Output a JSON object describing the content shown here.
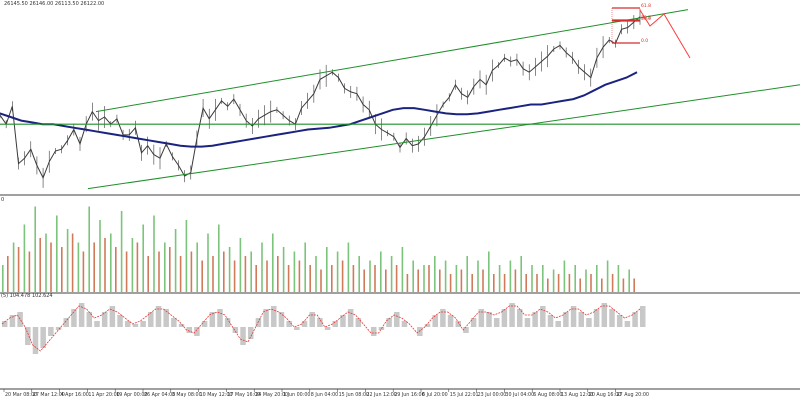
{
  "header": {
    "ohlc_text": "26145.50 26146.00 26113.50 26122.00",
    "volume_label": "0",
    "oscillator_label": "(5) 104.478 102.624"
  },
  "colors": {
    "background": "#ffffff",
    "price_line": "#3a3a3a",
    "moving_average": "#1a237e",
    "channel_lines": "#1f8f2a",
    "volume_up": "#7cc47c",
    "volume_down": "#d07a5a",
    "oscillator_fill": "#c8c8c8",
    "oscillator_signal": "#e53935",
    "fib_levels": "#d32f2f",
    "projection_line": "#ff3b3b",
    "axis_text": "#333333",
    "separator": "#000000"
  },
  "chart_data": {
    "type": "line",
    "x_ticks": [
      "20 Mar 08:00",
      "27 Mar 12:00",
      "4 Apr 16:00",
      "11 Apr 20:00",
      "19 Apr 00:00",
      "26 Apr 04:00",
      "3 May 08:00",
      "10 May 12:00",
      "17 May 16:00",
      "24 May 20:00",
      "1 Jun 00:00",
      "8 Jun 04:00",
      "15 Jun 08:00",
      "22 Jun 12:00",
      "29 Jun 16:00",
      "6 Jul 20:00",
      "15 Jul 22:01",
      "23 Jul 00:00",
      "30 Jul 04:00",
      "6 Aug 08:00",
      "13 Aug 12:00",
      "20 Aug 16:00",
      "27 Aug 20:00"
    ],
    "price_series": [
      4.4,
      3.9,
      4.9,
      1.7,
      2.0,
      2.5,
      1.6,
      0.9,
      1.8,
      2.4,
      2.5,
      3.0,
      3.6,
      2.8,
      3.9,
      4.6,
      4.1,
      4.3,
      3.9,
      4.2,
      3.3,
      3.3,
      3.7,
      2.3,
      2.7,
      2.2,
      2.0,
      2.8,
      2.1,
      1.6,
      1.0,
      1.2,
      3.1,
      4.8,
      4.2,
      4.7,
      5.2,
      4.9,
      5.3,
      4.7,
      4.1,
      3.8,
      4.2,
      4.4,
      4.6,
      4.7,
      4.4,
      4.1,
      3.9,
      4.8,
      5.2,
      5.6,
      6.4,
      6.6,
      6.8,
      6.5,
      5.9,
      5.7,
      5.6,
      5.0,
      4.7,
      3.9,
      3.6,
      3.4,
      3.2,
      2.6,
      3.1,
      2.7,
      2.8,
      3.2,
      3.8,
      4.4,
      5.0,
      5.4,
      6.1,
      5.6,
      5.4,
      6.0,
      6.4,
      6.1,
      6.9,
      7.2,
      7.6,
      7.4,
      7.5,
      7.0,
      6.8,
      7.1,
      7.4,
      7.7,
      8.1,
      8.3,
      7.9,
      7.6,
      7.1,
      6.8,
      6.5,
      7.6,
      8.2,
      8.6,
      8.4,
      9.2,
      9.3,
      9.6,
      9.9
    ],
    "moving_average": [
      4.5,
      4.3,
      4.1,
      4.0,
      3.9,
      3.9,
      3.8,
      3.7,
      3.6,
      3.5,
      3.4,
      3.3,
      3.2,
      3.1,
      3.0,
      2.9,
      2.8,
      2.7,
      2.65,
      2.65,
      2.7,
      2.8,
      2.9,
      3.0,
      3.1,
      3.2,
      3.3,
      3.4,
      3.5,
      3.6,
      3.65,
      3.7,
      3.8,
      3.9,
      4.1,
      4.3,
      4.5,
      4.7,
      4.8,
      4.8,
      4.7,
      4.6,
      4.5,
      4.45,
      4.45,
      4.5,
      4.6,
      4.7,
      4.8,
      4.9,
      5.0,
      5.0,
      5.1,
      5.2,
      5.3,
      5.5,
      5.8,
      6.1,
      6.3,
      6.5,
      6.8
    ],
    "channel_upper": {
      "x": [
        0.12,
        0.86
      ],
      "y": [
        4.6,
        10.3
      ]
    },
    "channel_lower": {
      "x": [
        0.11,
        1.0
      ],
      "y": [
        0.3,
        6.1
      ]
    },
    "horizontal_line_y": 3.9,
    "fib_levels": [
      "61.8",
      "50.0",
      "38.2",
      "0.0"
    ],
    "volume": {
      "up_values": [
        0.3,
        0.55,
        0.75,
        0.95,
        0.65,
        0.85,
        0.7,
        0.55,
        0.95,
        0.8,
        0.65,
        0.9,
        0.6,
        0.75,
        0.85,
        0.55,
        0.7,
        0.8,
        0.55,
        0.65,
        0.75,
        0.5,
        0.6,
        0.45,
        0.55,
        0.65,
        0.5,
        0.45,
        0.55,
        0.4,
        0.5,
        0.45,
        0.55,
        0.4,
        0.35,
        0.45,
        0.4,
        0.5,
        0.35,
        0.3,
        0.4,
        0.35,
        0.3,
        0.4,
        0.35,
        0.45,
        0.3,
        0.35,
        0.4,
        0.3,
        0.3,
        0.25,
        0.35,
        0.3,
        0.25,
        0.3,
        0.35,
        0.3,
        0.25
      ],
      "down_values": [
        0.4,
        0.5,
        0.45,
        0.6,
        0.55,
        0.5,
        0.65,
        0.45,
        0.55,
        0.6,
        0.5,
        0.45,
        0.55,
        0.4,
        0.45,
        0.5,
        0.4,
        0.45,
        0.35,
        0.4,
        0.45,
        0.35,
        0.4,
        0.3,
        0.35,
        0.4,
        0.3,
        0.35,
        0.3,
        0.25,
        0.3,
        0.35,
        0.3,
        0.25,
        0.3,
        0.25,
        0.3,
        0.2,
        0.25,
        0.3,
        0.25,
        0.2,
        0.25,
        0.2,
        0.25,
        0.2,
        0.2,
        0.25,
        0.2,
        0.2,
        0.15,
        0.2,
        0.2,
        0.15,
        0.2,
        0.15,
        0.2,
        0.15,
        0.15
      ]
    },
    "oscillator": {
      "histogram": [
        0.2,
        0.4,
        0.5,
        -0.6,
        -0.9,
        -0.7,
        -0.3,
        -0.1,
        0.3,
        0.6,
        0.8,
        0.5,
        0.2,
        0.5,
        0.7,
        0.4,
        0.2,
        0.1,
        0.2,
        0.5,
        0.7,
        0.6,
        0.3,
        0.1,
        -0.2,
        -0.3,
        0.2,
        0.5,
        0.6,
        0.3,
        -0.2,
        -0.6,
        -0.4,
        0.3,
        0.6,
        0.7,
        0.5,
        0.2,
        -0.1,
        0.2,
        0.5,
        0.3,
        -0.1,
        0.2,
        0.4,
        0.6,
        0.3,
        0.0,
        -0.3,
        -0.1,
        0.3,
        0.5,
        0.2,
        0.0,
        -0.3,
        0.1,
        0.4,
        0.6,
        0.4,
        0.2,
        -0.2,
        0.3,
        0.6,
        0.5,
        0.3,
        0.6,
        0.8,
        0.6,
        0.3,
        0.5,
        0.7,
        0.4,
        0.2,
        0.5,
        0.7,
        0.5,
        0.3,
        0.6,
        0.8,
        0.6,
        0.4,
        0.2,
        0.5,
        0.7
      ],
      "signal": [
        0.1,
        0.3,
        0.4,
        0.0,
        -0.6,
        -0.8,
        -0.5,
        -0.2,
        0.1,
        0.4,
        0.7,
        0.6,
        0.3,
        0.4,
        0.6,
        0.5,
        0.3,
        0.1,
        0.2,
        0.4,
        0.6,
        0.6,
        0.4,
        0.2,
        -0.1,
        -0.2,
        0.1,
        0.4,
        0.5,
        0.4,
        0.0,
        -0.4,
        -0.5,
        0.0,
        0.5,
        0.6,
        0.5,
        0.3,
        0.0,
        0.1,
        0.4,
        0.4,
        0.0,
        0.1,
        0.3,
        0.5,
        0.4,
        0.1,
        -0.2,
        -0.2,
        0.2,
        0.4,
        0.3,
        0.1,
        -0.2,
        0.0,
        0.3,
        0.5,
        0.5,
        0.3,
        -0.1,
        0.2,
        0.5,
        0.5,
        0.4,
        0.5,
        0.7,
        0.7,
        0.4,
        0.4,
        0.6,
        0.5,
        0.3,
        0.4,
        0.6,
        0.6,
        0.4,
        0.5,
        0.7,
        0.7,
        0.5,
        0.3,
        0.4,
        0.6
      ]
    }
  }
}
